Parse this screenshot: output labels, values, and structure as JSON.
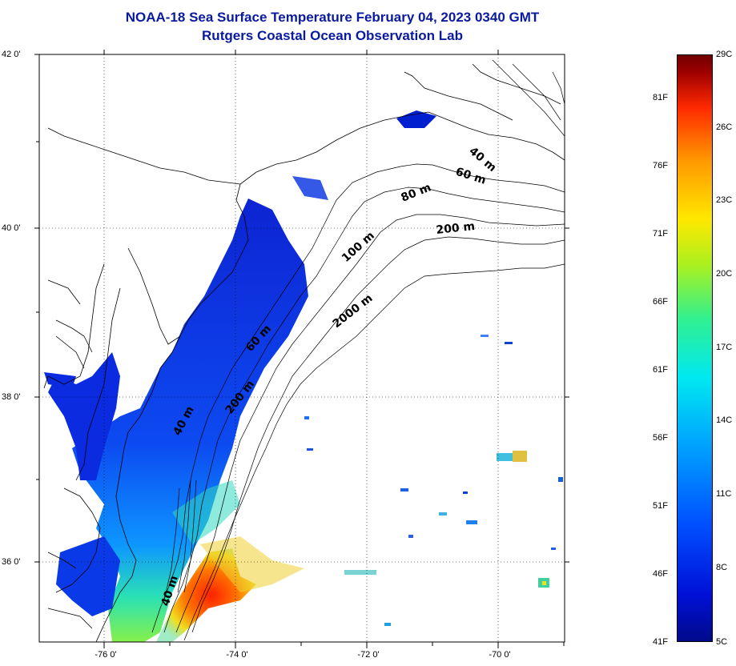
{
  "title": {
    "line1": "NOAA-18 Sea Surface Temperature February 04, 2023 0340 GMT",
    "line2": "Rutgers Coastal Ocean Observation Lab"
  },
  "axes": {
    "lat_labels": [
      "42 0'",
      "40 0'",
      "38 0'",
      "36 0'"
    ],
    "lon_labels": [
      "-76 0'",
      "-74 0'",
      "-72 0'",
      "-70 0'"
    ]
  },
  "isobaths": [
    "40 m",
    "60 m",
    "80 m",
    "200 m",
    "100 m",
    "2000 m",
    "60 m",
    "200 m",
    "40 m",
    "40 m"
  ],
  "colorbar": {
    "fahrenheit": [
      "81F",
      "76F",
      "71F",
      "66F",
      "61F",
      "56F",
      "51F",
      "46F",
      "41F"
    ],
    "celsius": [
      "29C",
      "26C",
      "23C",
      "20C",
      "17C",
      "14C",
      "11C",
      "8C",
      "5C"
    ],
    "range_c": [
      5,
      29
    ]
  },
  "colors": {
    "title": "#0a1aa0",
    "cold": "#0010d8",
    "warm": "#ff2a00"
  }
}
